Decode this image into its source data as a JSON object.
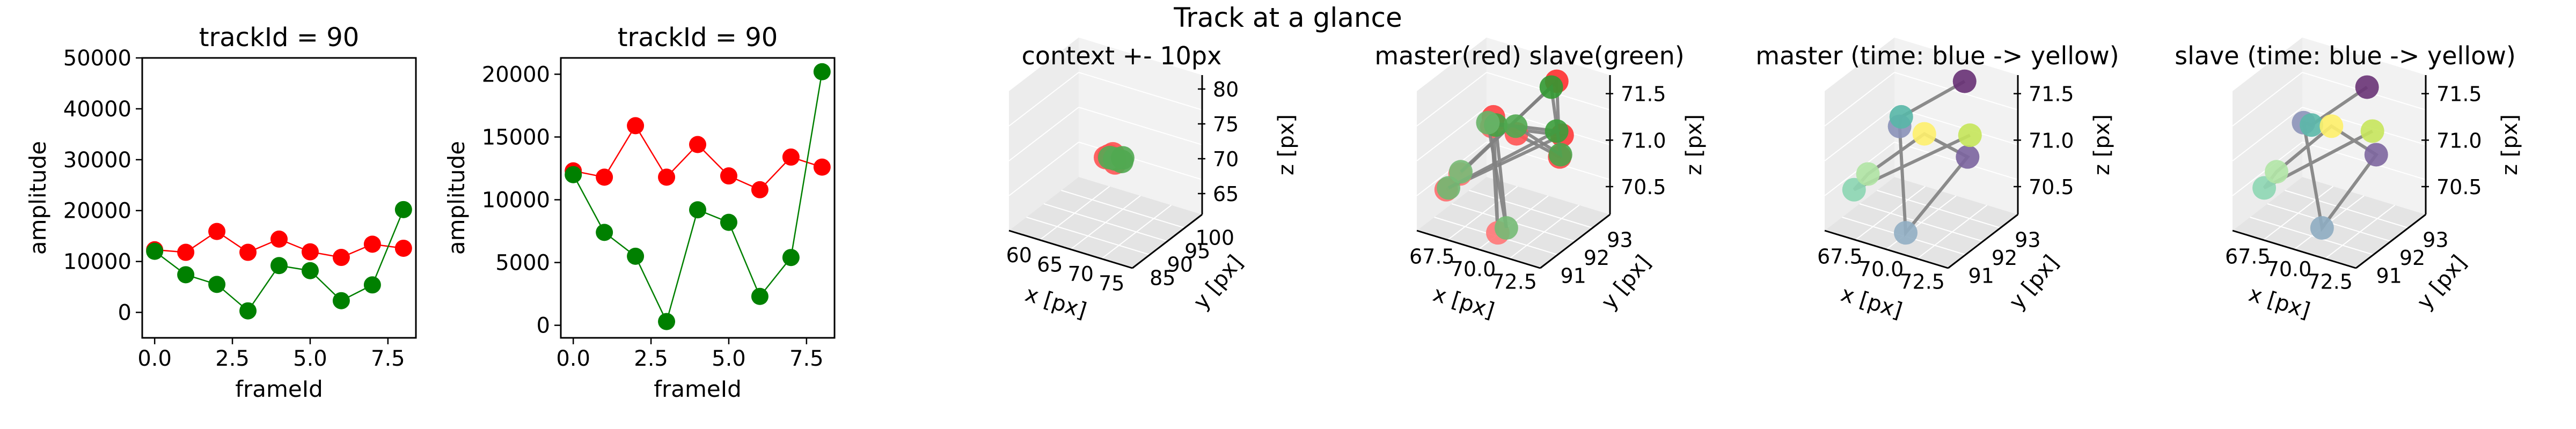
{
  "figure": {
    "suptitle": "Track at a glance"
  },
  "chart_data": [
    {
      "type": "line",
      "title": "trackId = 90",
      "xlabel": "frameId",
      "ylabel": "amplitude",
      "xlim": [
        -0.4,
        8.4
      ],
      "ylim": [
        -5000,
        50000
      ],
      "xticks": [
        "0.0",
        "2.5",
        "5.0",
        "7.5"
      ],
      "xtick_values": [
        0,
        2.5,
        5,
        7.5
      ],
      "yticks": [
        "0",
        "10000",
        "20000",
        "30000",
        "40000",
        "50000"
      ],
      "ytick_values": [
        0,
        10000,
        20000,
        30000,
        40000,
        50000
      ],
      "x": [
        0,
        1,
        2,
        3,
        4,
        5,
        6,
        7,
        8
      ],
      "series": [
        {
          "color": "#ff0000",
          "values": [
            12300,
            11800,
            15900,
            11800,
            14400,
            11900,
            10800,
            13400,
            12600
          ]
        },
        {
          "color": "#008000",
          "values": [
            12000,
            7400,
            5500,
            300,
            9200,
            8200,
            2300,
            5400,
            20200
          ]
        }
      ]
    },
    {
      "type": "line",
      "title": "trackId = 90",
      "xlabel": "frameId",
      "ylabel": "amplitude",
      "xlim": [
        -0.4,
        8.4
      ],
      "ylim": [
        -1000,
        21300
      ],
      "xticks": [
        "0.0",
        "2.5",
        "5.0",
        "7.5"
      ],
      "xtick_values": [
        0,
        2.5,
        5,
        7.5
      ],
      "yticks": [
        "0",
        "5000",
        "10000",
        "15000",
        "20000"
      ],
      "ytick_values": [
        0,
        5000,
        10000,
        15000,
        20000
      ],
      "x": [
        0,
        1,
        2,
        3,
        4,
        5,
        6,
        7,
        8
      ],
      "series": [
        {
          "color": "#ff0000",
          "values": [
            12300,
            11800,
            15900,
            11800,
            14400,
            11900,
            10800,
            13400,
            12600
          ]
        },
        {
          "color": "#008000",
          "values": [
            12000,
            7400,
            5500,
            300,
            9200,
            8200,
            2300,
            5400,
            20200
          ]
        }
      ]
    },
    {
      "type": "scatter",
      "title": "context +- 10px",
      "xlabel": "x [px]",
      "ylabel": "y [px]",
      "zlabel": "z [px]",
      "xticks": [
        "60",
        "65",
        "70",
        "75"
      ],
      "yticks": [
        "85",
        "90",
        "95",
        "100"
      ],
      "zticks": [
        "65",
        "70",
        "75",
        "80"
      ],
      "xlim": [
        58,
        80
      ],
      "ylim": [
        82,
        102
      ],
      "zlim": [
        61,
        82
      ],
      "series": [
        {
          "color": "#ff0000",
          "points": [
            [
              69,
              92,
              70.8
            ],
            [
              70,
              92.5,
              71.4
            ],
            [
              71,
              91.5,
              70.7
            ],
            [
              69.5,
              92.2,
              71.1
            ]
          ]
        },
        {
          "color": "#008000",
          "points": [
            [
              70.5,
              92.2,
              70.9
            ],
            [
              71.5,
              92.6,
              70.6
            ],
            [
              70,
              91.6,
              71.2
            ],
            [
              71.8,
              92.4,
              71.3
            ]
          ]
        }
      ]
    },
    {
      "type": "scatter",
      "title": "master(red) slave(green)",
      "xlabel": "x [px]",
      "ylabel": "y [px]",
      "zlabel": "z [px]",
      "xticks": [
        "67.5",
        "70.0",
        "72.5"
      ],
      "yticks": [
        "91",
        "92",
        "93"
      ],
      "zticks": [
        "70.5",
        "71.0",
        "71.5"
      ],
      "xlim": [
        66,
        74
      ],
      "ylim": [
        90.5,
        93.5
      ],
      "zlim": [
        70.2,
        71.6
      ],
      "series": [
        {
          "color": "#ff0000",
          "points": [
            [
              67,
              91.1,
              70.55
            ],
            [
              67.8,
              92.6,
              71.05
            ],
            [
              69.5,
              91.4,
              71.25
            ],
            [
              70.8,
              90.8,
              70.35
            ],
            [
              71.8,
              92.9,
              71.0
            ],
            [
              71.0,
              93.2,
              71.45
            ],
            [
              72.4,
              92.4,
              70.9
            ],
            [
              68.2,
              90.9,
              70.8
            ],
            [
              70.2,
              92.0,
              71.1
            ]
          ]
        },
        {
          "color": "#008000",
          "points": [
            [
              67.3,
              91.0,
              70.6
            ],
            [
              68.1,
              92.5,
              71.0
            ],
            [
              69.4,
              91.3,
              71.3
            ],
            [
              71.2,
              90.9,
              70.4
            ],
            [
              71.6,
              92.8,
              71.05
            ],
            [
              70.8,
              93.1,
              71.4
            ],
            [
              72.6,
              92.3,
              70.95
            ],
            [
              68.4,
              90.8,
              70.85
            ],
            [
              70.0,
              92.1,
              71.15
            ]
          ]
        }
      ]
    },
    {
      "type": "scatter",
      "title": "master (time: blue -> yellow)",
      "xlabel": "x [px]",
      "ylabel": "y [px]",
      "zlabel": "z [px]",
      "xticks": [
        "67.5",
        "70.0",
        "72.5"
      ],
      "yticks": [
        "91",
        "92",
        "93"
      ],
      "zticks": [
        "70.5",
        "71.0",
        "71.5"
      ],
      "xlim": [
        66,
        74
      ],
      "ylim": [
        90.5,
        93.5
      ],
      "zlim": [
        70.2,
        71.6
      ],
      "series": [
        {
          "color": "viridis",
          "points": [
            [
              71.0,
              93.2,
              71.45
            ],
            [
              72.4,
              92.4,
              70.9
            ],
            [
              69.5,
              91.4,
              71.25
            ],
            [
              70.8,
              90.8,
              70.35
            ],
            [
              67.8,
              92.6,
              71.05
            ],
            [
              67,
              91.1,
              70.55
            ],
            [
              68.2,
              90.9,
              70.8
            ],
            [
              71.8,
              92.9,
              71.0
            ],
            [
              70.2,
              92.0,
              71.1
            ]
          ]
        }
      ]
    },
    {
      "type": "scatter",
      "title": "slave (time: blue -> yellow)",
      "xlabel": "x [px]",
      "ylabel": "y [px]",
      "zlabel": "z [px]",
      "xticks": [
        "67.5",
        "70.0",
        "72.5"
      ],
      "yticks": [
        "91",
        "92",
        "93"
      ],
      "zticks": [
        "70.5",
        "71.0",
        "71.5"
      ],
      "xlim": [
        66,
        74
      ],
      "ylim": [
        90.5,
        93.5
      ],
      "zlim": [
        70.2,
        71.6
      ],
      "series": [
        {
          "color": "viridis",
          "points": [
            [
              70.8,
              93.1,
              71.4
            ],
            [
              72.6,
              92.3,
              70.95
            ],
            [
              69.4,
              91.3,
              71.3
            ],
            [
              71.2,
              90.9,
              70.4
            ],
            [
              68.1,
              92.5,
              71.0
            ],
            [
              67.3,
              91.0,
              70.6
            ],
            [
              68.4,
              90.8,
              70.85
            ],
            [
              71.6,
              92.8,
              71.05
            ],
            [
              70.0,
              92.1,
              71.15
            ]
          ]
        }
      ]
    }
  ]
}
